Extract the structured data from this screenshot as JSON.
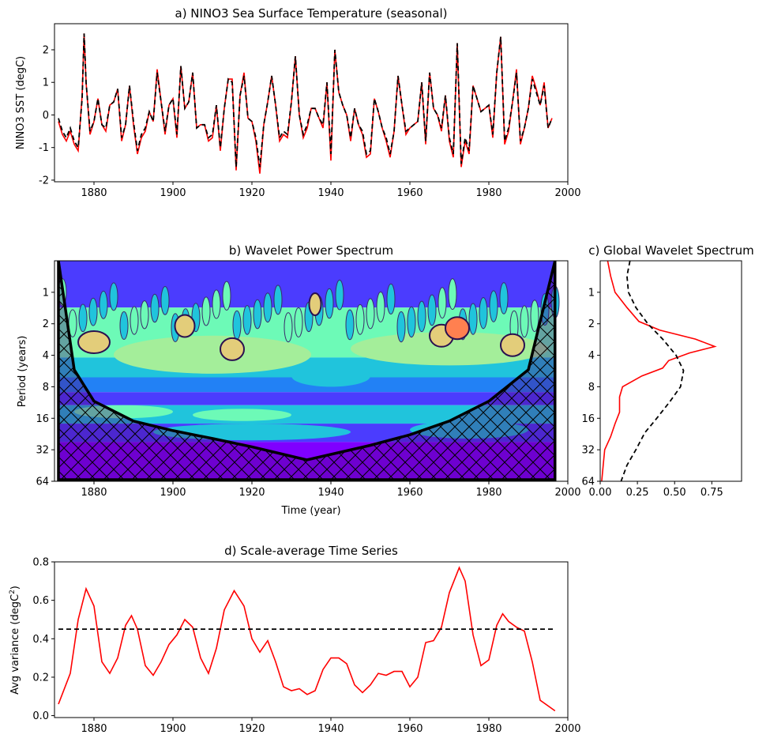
{
  "chart_data": [
    {
      "id": "a",
      "type": "line",
      "title": "a) NINO3 Sea Surface Temperature (seasonal)",
      "xlabel": "",
      "ylabel": "NINO3 SST (degC)",
      "xlim": [
        1870,
        2000
      ],
      "ylim": [
        -2.05,
        2.8
      ],
      "xticks": [
        1880,
        1900,
        1920,
        1940,
        1960,
        1980,
        2000
      ],
      "yticks": [
        -2,
        -1,
        0,
        1,
        2
      ],
      "series": [
        {
          "style": "red-solid",
          "color": "#ff0000",
          "x": [
            1871,
            1872,
            1873,
            1874,
            1875,
            1876,
            1877,
            1877.5,
            1878,
            1879,
            1880,
            1881,
            1882,
            1883,
            1884,
            1885,
            1886,
            1887,
            1888,
            1889,
            1890,
            1891,
            1892,
            1893,
            1894,
            1895,
            1896,
            1897,
            1898,
            1899,
            1900,
            1901,
            1902,
            1903,
            1904,
            1905,
            1906,
            1907,
            1908,
            1909,
            1910,
            1911,
            1912,
            1913,
            1914,
            1915,
            1916,
            1917,
            1918,
            1919,
            1920,
            1921,
            1922,
            1923,
            1924,
            1925,
            1926,
            1927,
            1928,
            1929,
            1930,
            1931,
            1932,
            1933,
            1934,
            1935,
            1936,
            1937,
            1938,
            1939,
            1940,
            1941,
            1942,
            1943,
            1944,
            1945,
            1946,
            1947,
            1948,
            1949,
            1950,
            1951,
            1952,
            1953,
            1954,
            1955,
            1956,
            1957,
            1958,
            1959,
            1960,
            1961,
            1962,
            1963,
            1964,
            1965,
            1966,
            1967,
            1968,
            1969,
            1970,
            1971,
            1972,
            1973,
            1974,
            1975,
            1976,
            1977,
            1978,
            1979,
            1980,
            1981,
            1982,
            1983,
            1984,
            1985,
            1986,
            1987,
            1988,
            1989,
            1990,
            1991,
            1992,
            1993,
            1994,
            1995,
            1996
          ],
          "y": [
            -0.2,
            -0.6,
            -0.8,
            -0.5,
            -0.9,
            -1.1,
            0.6,
            2.5,
            1.0,
            -0.6,
            -0.2,
            0.5,
            -0.3,
            -0.5,
            0.3,
            0.4,
            0.8,
            -0.8,
            -0.3,
            0.9,
            -0.3,
            -1.2,
            -0.7,
            -0.5,
            0.1,
            -0.2,
            1.4,
            0.4,
            -0.6,
            0.3,
            0.5,
            -0.7,
            1.5,
            0.2,
            0.4,
            1.3,
            -0.4,
            -0.3,
            -0.3,
            -0.8,
            -0.7,
            0.3,
            -1.1,
            0.2,
            1.1,
            1.1,
            -1.7,
            0.6,
            1.3,
            -0.1,
            -0.2,
            -0.8,
            -1.8,
            -0.3,
            0.4,
            1.2,
            0.3,
            -0.8,
            -0.6,
            -0.7,
            0.4,
            1.8,
            0.0,
            -0.7,
            -0.4,
            0.2,
            0.2,
            -0.1,
            -0.4,
            1.0,
            -1.4,
            2.0,
            0.7,
            0.3,
            0.0,
            -0.8,
            0.2,
            -0.3,
            -0.6,
            -1.3,
            -1.2,
            0.5,
            0.1,
            -0.4,
            -0.8,
            -1.3,
            -0.5,
            1.2,
            0.3,
            -0.6,
            -0.4,
            -0.3,
            -0.2,
            1.0,
            -0.9,
            1.3,
            0.2,
            0.0,
            -0.5,
            0.6,
            -0.8,
            -1.3,
            2.2,
            -1.6,
            -0.8,
            -1.2,
            0.9,
            0.5,
            0.1,
            0.2,
            0.3,
            -0.7,
            1.3,
            2.4,
            -0.9,
            -0.5,
            0.4,
            1.4,
            -0.9,
            -0.4,
            0.2,
            1.2,
            0.8,
            0.3,
            1.0,
            -0.4,
            -0.1
          ]
        },
        {
          "style": "black-dashed",
          "color": "#000000",
          "x": [
            1871,
            1872,
            1873,
            1874,
            1875,
            1876,
            1877,
            1877.5,
            1878,
            1879,
            1880,
            1881,
            1882,
            1883,
            1884,
            1885,
            1886,
            1887,
            1888,
            1889,
            1890,
            1891,
            1892,
            1893,
            1894,
            1895,
            1896,
            1897,
            1898,
            1899,
            1900,
            1901,
            1902,
            1903,
            1904,
            1905,
            1906,
            1907,
            1908,
            1909,
            1910,
            1911,
            1912,
            1913,
            1914,
            1915,
            1916,
            1917,
            1918,
            1919,
            1920,
            1921,
            1922,
            1923,
            1924,
            1925,
            1926,
            1927,
            1928,
            1929,
            1930,
            1931,
            1932,
            1933,
            1934,
            1935,
            1936,
            1937,
            1938,
            1939,
            1940,
            1941,
            1942,
            1943,
            1944,
            1945,
            1946,
            1947,
            1948,
            1949,
            1950,
            1951,
            1952,
            1953,
            1954,
            1955,
            1956,
            1957,
            1958,
            1959,
            1960,
            1961,
            1962,
            1963,
            1964,
            1965,
            1966,
            1967,
            1968,
            1969,
            1970,
            1971,
            1972,
            1973,
            1974,
            1975,
            1976,
            1977,
            1978,
            1979,
            1980,
            1981,
            1982,
            1983,
            1984,
            1985,
            1986,
            1987,
            1988,
            1989,
            1990,
            1991,
            1992,
            1993,
            1994,
            1995,
            1996
          ],
          "y": [
            -0.1,
            -0.5,
            -0.7,
            -0.4,
            -0.8,
            -1.0,
            0.5,
            2.5,
            1.0,
            -0.5,
            -0.2,
            0.5,
            -0.3,
            -0.4,
            0.3,
            0.4,
            0.8,
            -0.7,
            -0.3,
            0.9,
            -0.2,
            -1.1,
            -0.6,
            -0.4,
            0.1,
            -0.2,
            1.3,
            0.4,
            -0.5,
            0.3,
            0.5,
            -0.6,
            1.5,
            0.2,
            0.4,
            1.3,
            -0.4,
            -0.3,
            -0.3,
            -0.7,
            -0.6,
            0.3,
            -1.0,
            0.2,
            1.1,
            1.0,
            -1.6,
            0.6,
            1.2,
            -0.1,
            -0.2,
            -0.7,
            -1.6,
            -0.3,
            0.4,
            1.2,
            0.3,
            -0.7,
            -0.5,
            -0.6,
            0.4,
            1.8,
            0.0,
            -0.6,
            -0.3,
            0.2,
            0.2,
            -0.1,
            -0.3,
            1.0,
            -1.2,
            2.0,
            0.7,
            0.3,
            0.0,
            -0.7,
            0.2,
            -0.3,
            -0.5,
            -1.2,
            -1.1,
            0.5,
            0.1,
            -0.4,
            -0.7,
            -1.2,
            -0.5,
            1.2,
            0.3,
            -0.5,
            -0.4,
            -0.3,
            -0.2,
            1.0,
            -0.8,
            1.3,
            0.2,
            0.0,
            -0.4,
            0.6,
            -0.7,
            -1.2,
            2.2,
            -1.5,
            -0.7,
            -1.1,
            0.9,
            0.5,
            0.1,
            0.2,
            0.3,
            -0.6,
            1.3,
            2.4,
            -0.8,
            -0.4,
            0.4,
            1.3,
            -0.8,
            -0.4,
            0.2,
            1.1,
            0.7,
            0.3,
            0.9,
            -0.4,
            -0.1
          ]
        }
      ]
    },
    {
      "id": "b",
      "type": "heatmap",
      "title": "b) Wavelet Power Spectrum",
      "xlabel": "Time (year)",
      "ylabel": "Period (years)",
      "xlim": [
        1870,
        2000
      ],
      "xticks": [
        1880,
        1900,
        1920,
        1940,
        1960,
        1980,
        2000
      ],
      "yscale": "log2",
      "ylim_period": [
        0.5,
        64
      ],
      "yticks": [
        1,
        2,
        4,
        8,
        16,
        32,
        64
      ],
      "colormap": "rainbow",
      "levels": [
        "#7f00ff",
        "#4b3cfe",
        "#2281f5",
        "#20c4dc",
        "#6dfab7",
        "#a4ee9a",
        "#e3cd7a",
        "#ff8050",
        "#ff2b16"
      ],
      "data_extent": [
        1871,
        1996.75
      ],
      "cone_of_influence": {
        "x": [
          1871,
          1875,
          1880,
          1890,
          1900,
          1910,
          1920,
          1933.9,
          1950,
          1960,
          1970,
          1980,
          1990,
          1996.75
        ],
        "period": [
          0.5,
          5.5,
          11,
          17,
          21,
          25,
          30,
          40,
          29,
          23,
          17,
          11,
          5.5,
          0.5
        ]
      },
      "significant_regions": [
        {
          "x_center": 1880,
          "period_center": 3,
          "x_width": 8,
          "level": 6
        },
        {
          "x_center": 1903,
          "period_center": 2.1,
          "x_width": 5,
          "level": 6
        },
        {
          "x_center": 1915,
          "period_center": 3.5,
          "x_width": 6,
          "level": 6
        },
        {
          "x_center": 1936,
          "period_center": 1.3,
          "x_width": 3,
          "level": 6
        },
        {
          "x_center": 1968,
          "period_center": 2.6,
          "x_width": 6,
          "level": 6
        },
        {
          "x_center": 1972,
          "period_center": 2.2,
          "x_width": 6,
          "level": 7
        },
        {
          "x_center": 1986,
          "period_center": 3.2,
          "x_width": 6,
          "level": 6
        }
      ]
    },
    {
      "id": "c",
      "type": "line",
      "title": "c) Global Wavelet Spectrum",
      "xlabel": "",
      "ylabel": "",
      "xlim": [
        0,
        0.95
      ],
      "xticks": [
        0.0,
        0.25,
        0.5,
        0.75
      ],
      "xtick_labels": [
        "0.00",
        "0.25",
        "0.50",
        "0.75"
      ],
      "yscale": "log2",
      "ylim_period": [
        0.5,
        64
      ],
      "series": [
        {
          "style": "red-solid",
          "color": "#ff0000",
          "period": [
            0.5,
            0.7,
            1.0,
            1.4,
            1.9,
            2.3,
            2.8,
            3.3,
            3.8,
            4.5,
            5.3,
            6.3,
            8.0,
            10,
            14,
            18,
            24,
            32,
            45,
            64
          ],
          "x": [
            0.05,
            0.07,
            0.1,
            0.18,
            0.26,
            0.4,
            0.64,
            0.77,
            0.6,
            0.46,
            0.42,
            0.28,
            0.15,
            0.13,
            0.13,
            0.1,
            0.07,
            0.03,
            0.02,
            0.01
          ]
        },
        {
          "style": "black-dashed",
          "color": "#000000",
          "period": [
            0.5,
            0.7,
            1.0,
            1.4,
            2.0,
            2.8,
            4.0,
            5.6,
            8.0,
            11,
            16,
            22,
            32,
            45,
            64
          ],
          "x": [
            0.2,
            0.18,
            0.19,
            0.24,
            0.32,
            0.42,
            0.51,
            0.56,
            0.54,
            0.47,
            0.38,
            0.3,
            0.24,
            0.18,
            0.14
          ]
        }
      ]
    },
    {
      "id": "d",
      "type": "line",
      "title": "d) Scale-average Time Series",
      "xlabel": "",
      "ylabel": "Avg variance (degC",
      "ylabel_sup": "2",
      "ylabel_end": ")",
      "xlim": [
        1870,
        2000
      ],
      "ylim": [
        -0.01,
        0.8
      ],
      "xticks": [
        1880,
        1900,
        1920,
        1940,
        1960,
        1980,
        2000
      ],
      "yticks": [
        0.0,
        0.2,
        0.4,
        0.6,
        0.8
      ],
      "ytick_labels": [
        "0.0",
        "0.2",
        "0.4",
        "0.6",
        "0.8"
      ],
      "series": [
        {
          "style": "red-solid",
          "color": "#ff0000",
          "x": [
            1871,
            1874,
            1876,
            1878,
            1880,
            1882,
            1884,
            1886,
            1888,
            1889.5,
            1891,
            1893,
            1895,
            1897,
            1899,
            1901,
            1903,
            1905,
            1907,
            1909,
            1911,
            1913,
            1915.5,
            1918,
            1920,
            1922,
            1924,
            1926,
            1928,
            1930,
            1932,
            1934,
            1936,
            1938,
            1940,
            1942,
            1944,
            1946,
            1948,
            1950,
            1952,
            1954,
            1956,
            1958,
            1960,
            1962,
            1964,
            1966,
            1968,
            1970,
            1972.5,
            1974,
            1976,
            1978,
            1980,
            1982,
            1983.5,
            1985,
            1987,
            1989,
            1991,
            1993,
            1996.75
          ],
          "y": [
            0.06,
            0.22,
            0.5,
            0.66,
            0.57,
            0.28,
            0.22,
            0.3,
            0.47,
            0.52,
            0.45,
            0.26,
            0.21,
            0.28,
            0.37,
            0.42,
            0.5,
            0.46,
            0.3,
            0.22,
            0.35,
            0.55,
            0.65,
            0.57,
            0.4,
            0.33,
            0.39,
            0.28,
            0.15,
            0.13,
            0.14,
            0.11,
            0.13,
            0.24,
            0.3,
            0.3,
            0.27,
            0.16,
            0.12,
            0.16,
            0.22,
            0.21,
            0.23,
            0.23,
            0.15,
            0.2,
            0.38,
            0.39,
            0.46,
            0.64,
            0.77,
            0.7,
            0.42,
            0.26,
            0.29,
            0.47,
            0.53,
            0.49,
            0.46,
            0.44,
            0.28,
            0.08,
            0.025
          ]
        },
        {
          "style": "black-dashed",
          "color": "#000000",
          "x": [
            1871,
            1996.75
          ],
          "y": [
            0.45,
            0.45
          ]
        }
      ]
    }
  ]
}
